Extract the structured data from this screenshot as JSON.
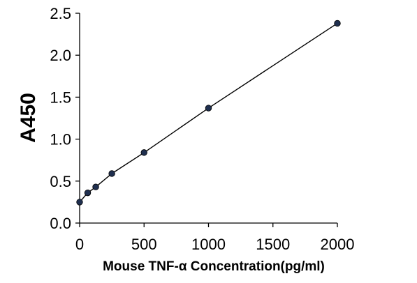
{
  "chart_data": {
    "type": "scatter",
    "title": "",
    "xlabel": "Mouse TNF-α Concentration(pg/ml)",
    "ylabel": "A450",
    "xlim": [
      0,
      2000
    ],
    "ylim": [
      0.0,
      2.5
    ],
    "x_ticks": [
      "0",
      "500",
      "1000",
      "1500",
      "2000"
    ],
    "y_ticks": [
      "0.0",
      "0.5",
      "1.0",
      "1.5",
      "2.0",
      "2.5"
    ],
    "grid": false,
    "legend": "none",
    "series": [
      {
        "marker_color": "#1f2f4f",
        "line_color": "#000000",
        "x": [
          0,
          62.5,
          125,
          250,
          500,
          1000,
          2000
        ],
        "y": [
          0.25,
          0.36,
          0.43,
          0.59,
          0.84,
          1.37,
          2.38
        ]
      }
    ]
  }
}
